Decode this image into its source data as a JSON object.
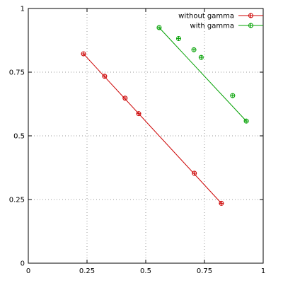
{
  "chart_data": {
    "type": "line",
    "title": "",
    "xlabel": "",
    "ylabel": "",
    "xlim": [
      0,
      1
    ],
    "ylim": [
      0,
      1
    ],
    "xticks": [
      "0",
      "0.25",
      "0.5",
      "0.75",
      "1"
    ],
    "yticks": [
      "0",
      "0.25",
      "0.5",
      "0.75",
      "1"
    ],
    "grid": true,
    "grid_style": "dotted",
    "legend_position": "top-right",
    "series": [
      {
        "name": "without gamma",
        "color": "#cc0000",
        "marker": "circle-plus",
        "points": [
          [
            0.235,
            0.822
          ],
          [
            0.325,
            0.734
          ],
          [
            0.412,
            0.648
          ],
          [
            0.47,
            0.587
          ],
          [
            0.707,
            0.353
          ],
          [
            0.822,
            0.235
          ]
        ],
        "fit_line": [
          [
            0.235,
            0.822
          ],
          [
            0.822,
            0.235
          ]
        ]
      },
      {
        "name": "with gamma",
        "color": "#00a000",
        "marker": "circle-plus",
        "points": [
          [
            0.557,
            0.925
          ],
          [
            0.64,
            0.882
          ],
          [
            0.705,
            0.838
          ],
          [
            0.736,
            0.808
          ],
          [
            0.87,
            0.658
          ],
          [
            0.928,
            0.558
          ]
        ],
        "fit_line": [
          [
            0.557,
            0.925
          ],
          [
            0.928,
            0.558
          ]
        ]
      }
    ]
  }
}
